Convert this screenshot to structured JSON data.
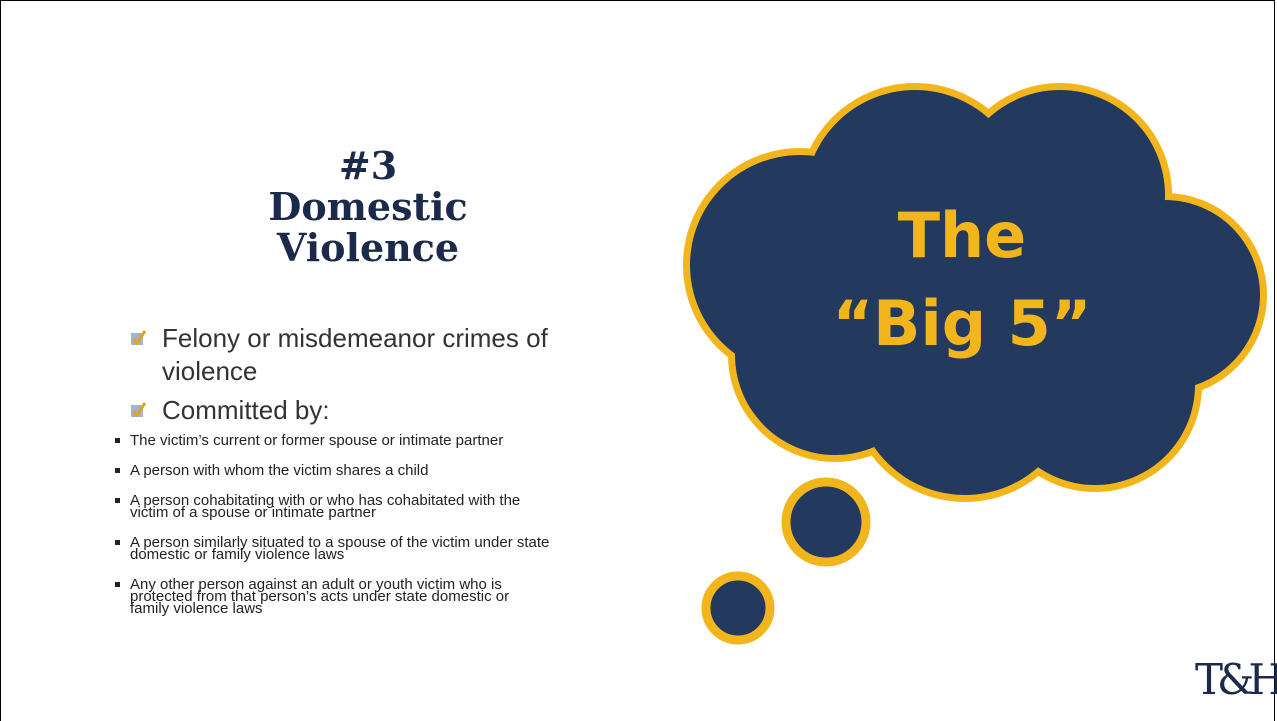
{
  "title": {
    "lines": [
      "#3",
      "Domestic",
      "Violence"
    ]
  },
  "bullets": [
    {
      "text": "Felony or misdemeanor crimes of violence",
      "subitems": []
    },
    {
      "text": "Committed by:",
      "subitems": [
        "The victim’s current or former spouse or intimate partner",
        "A person with whom the victim shares a child",
        "A person cohabitating with or who has cohabitated with the victim of a spouse or intimate partner",
        "A person similarly situated to a spouse of the victim under state domestic or family violence laws",
        "Any other person against an adult or youth victim who is protected from that person’s acts under state domestic or family violence laws"
      ]
    }
  ],
  "cloud": {
    "lines": [
      "The",
      "“Big 5”"
    ]
  },
  "logo": {
    "text": "T&H"
  }
}
